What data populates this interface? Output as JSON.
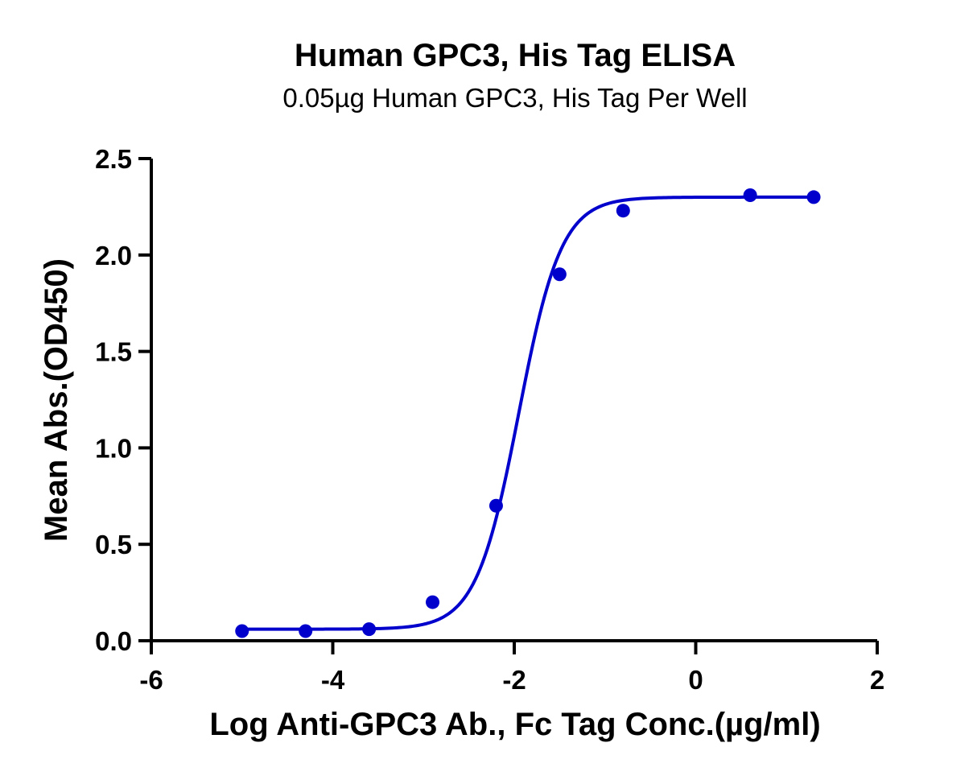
{
  "chart_data": {
    "type": "scatter",
    "title": "Human GPC3, His Tag ELISA",
    "subtitle": "0.05µg Human GPC3, His Tag Per Well",
    "xlabel": "Log Anti-GPC3 Ab., Fc Tag Conc.(µg/ml)",
    "ylabel": "Mean Abs.(OD450)",
    "xlim": [
      -6,
      2
    ],
    "ylim": [
      0,
      2.5
    ],
    "x_ticks": [
      -6,
      -4,
      -2,
      0,
      2
    ],
    "x_tick_labels": [
      "-6",
      "-4",
      "-2",
      "0",
      "2"
    ],
    "y_ticks": [
      0,
      0.5,
      1.0,
      1.5,
      2.0,
      2.5
    ],
    "y_tick_labels": [
      "0.0",
      "0.5",
      "1.0",
      "1.5",
      "2.0",
      "2.5"
    ],
    "grid": false,
    "legend": false,
    "color": "#0000CC",
    "series": [
      {
        "points": [
          {
            "x": -5.0,
            "y": 0.05
          },
          {
            "x": -4.3,
            "y": 0.05
          },
          {
            "x": -3.6,
            "y": 0.06
          },
          {
            "x": -2.9,
            "y": 0.2
          },
          {
            "x": -2.2,
            "y": 0.7
          },
          {
            "x": -1.5,
            "y": 1.9
          },
          {
            "x": -0.8,
            "y": 2.23
          },
          {
            "x": 0.6,
            "y": 2.31
          },
          {
            "x": 1.3,
            "y": 2.3
          }
        ],
        "fit": {
          "model": "4PL",
          "bottom": 0.06,
          "top": 2.3,
          "logEC50": -1.95,
          "hill": 1.85
        }
      }
    ]
  }
}
